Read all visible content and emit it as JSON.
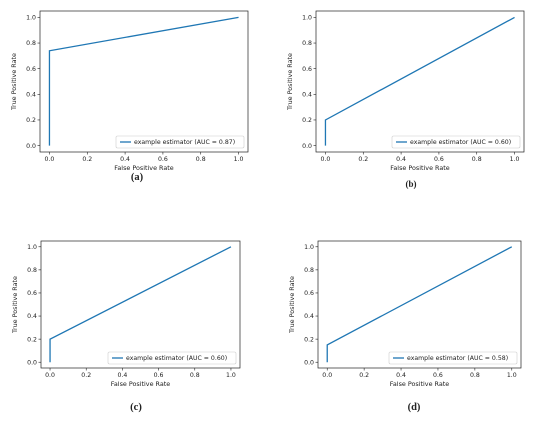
{
  "chart_data": [
    {
      "type": "line",
      "panel_label": "(a)",
      "xlabel": "False Positive Rate",
      "ylabel": "True Positive Rate",
      "xlim": [
        -0.05,
        1.05
      ],
      "ylim": [
        -0.05,
        1.05
      ],
      "xticks": [
        "0.0",
        "0.2",
        "0.4",
        "0.6",
        "0.8",
        "1.0"
      ],
      "yticks": [
        "0.0",
        "0.2",
        "0.4",
        "0.6",
        "0.8",
        "1.0"
      ],
      "legend_position": "bottom-right",
      "series": [
        {
          "name": "example estimator (AUC = 0.87)",
          "color": "#1f77b4",
          "x": [
            0.0,
            0.0,
            1.0
          ],
          "y": [
            0.0,
            0.74,
            1.0
          ]
        }
      ]
    },
    {
      "type": "line",
      "panel_label": "(b)",
      "xlabel": "False Positive Rate",
      "ylabel": "True Positive Rate",
      "xlim": [
        -0.05,
        1.05
      ],
      "ylim": [
        -0.05,
        1.05
      ],
      "xticks": [
        "0.0",
        "0.2",
        "0.4",
        "0.6",
        "0.8",
        "1.0"
      ],
      "yticks": [
        "0.0",
        "0.2",
        "0.4",
        "0.6",
        "0.8",
        "1.0"
      ],
      "legend_position": "bottom-right",
      "series": [
        {
          "name": "example estimator (AUC = 0.60)",
          "color": "#1f77b4",
          "x": [
            0.0,
            0.0,
            1.0
          ],
          "y": [
            0.0,
            0.2,
            1.0
          ]
        }
      ]
    },
    {
      "type": "line",
      "panel_label": "(c)",
      "xlabel": "False Positive Rate",
      "ylabel": "True Positive Rate",
      "xlim": [
        -0.05,
        1.05
      ],
      "ylim": [
        -0.05,
        1.05
      ],
      "xticks": [
        "0.0",
        "0.2",
        "0.4",
        "0.6",
        "0.8",
        "1.0"
      ],
      "yticks": [
        "0.0",
        "0.2",
        "0.4",
        "0.6",
        "0.8",
        "1.0"
      ],
      "legend_position": "bottom-right",
      "series": [
        {
          "name": "example estimator (AUC = 0.60)",
          "color": "#1f77b4",
          "x": [
            0.0,
            0.0,
            1.0
          ],
          "y": [
            0.0,
            0.2,
            1.0
          ]
        }
      ]
    },
    {
      "type": "line",
      "panel_label": "(d)",
      "xlabel": "False Positive Rate",
      "ylabel": "True Positive Rate",
      "xlim": [
        -0.05,
        1.05
      ],
      "ylim": [
        -0.05,
        1.05
      ],
      "xticks": [
        "0.0",
        "0.2",
        "0.4",
        "0.6",
        "0.8",
        "1.0"
      ],
      "yticks": [
        "0.0",
        "0.2",
        "0.4",
        "0.6",
        "0.8",
        "1.0"
      ],
      "legend_position": "bottom-right",
      "series": [
        {
          "name": "example estimator (AUC = 0.58)",
          "color": "#1f77b4",
          "x": [
            0.0,
            0.0,
            1.0
          ],
          "y": [
            0.0,
            0.15,
            1.0
          ]
        }
      ]
    }
  ]
}
